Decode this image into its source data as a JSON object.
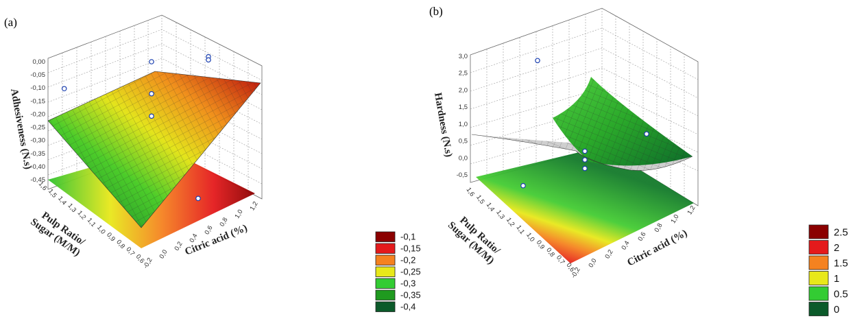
{
  "chart_data": [
    {
      "panel": "(a)",
      "type": "surface3d",
      "zlabel": "Adhesiveness (N.s)",
      "xlabel": "Citric acid (%)",
      "ylabel": "Pulp Ratio/ Sugar (M/M)",
      "z_ticks": [
        "0,00",
        "-0,05",
        "-0,10",
        "-0,15",
        "-0,20",
        "-0,25",
        "-0,30",
        "-0,35",
        "-0,40",
        "-0,45"
      ],
      "x_ticks": [
        "-0,2",
        "0,0",
        "0,2",
        "0,4",
        "0,6",
        "0,8",
        "1,0",
        "1,2"
      ],
      "y_ticks": [
        "0,6",
        "0,7",
        "0,8",
        "0,9",
        "1,0",
        "1,1",
        "1,2",
        "1,3",
        "1,4",
        "1,5",
        "1,6"
      ],
      "zlim": [
        -0.45,
        0.0
      ],
      "xlim": [
        -0.2,
        1.2
      ],
      "ylim": [
        0.6,
        1.6
      ],
      "legend": {
        "entries": [
          "-0,1",
          "-0,15",
          "-0,2",
          "-0,25",
          "-0,3",
          "-0,35",
          "-0,4"
        ],
        "colors": [
          "#8b0000",
          "#e41a1c",
          "#f58220",
          "#e8e81a",
          "#33cc33",
          "#1f9a1f",
          "#0b5a2a"
        ]
      },
      "points": [
        {
          "x": 0.0,
          "y": 1.6,
          "z": -0.19
        },
        {
          "x": 0.5,
          "y": 1.1,
          "z": -0.06
        },
        {
          "x": 0.5,
          "y": 1.1,
          "z": -0.16
        },
        {
          "x": 0.5,
          "y": 1.1,
          "z": -0.23
        },
        {
          "x": 1.2,
          "y": 1.1,
          "z": -0.13
        },
        {
          "x": 1.2,
          "y": 1.1,
          "z": -0.14
        },
        {
          "x": 0.5,
          "y": 0.6,
          "z": -0.38
        }
      ]
    },
    {
      "panel": "(b)",
      "type": "surface3d",
      "zlabel": "Hardness (N.s)",
      "xlabel": "Citric acid (%)",
      "ylabel": "Pulp Ratio/ Sugar (M/M)",
      "z_ticks": [
        "3,0",
        "2,5",
        "2,0",
        "1,5",
        "1,0",
        "0,5",
        "0,0",
        "-0,5"
      ],
      "x_ticks": [
        "-0,2",
        "0,0",
        "0,2",
        "0,4",
        "0,6",
        "0,8",
        "1,0",
        "1,2"
      ],
      "y_ticks": [
        "0,6",
        "0,7",
        "0,8",
        "0,9",
        "1,0",
        "1,1",
        "1,2",
        "1,3",
        "1,4",
        "1,5",
        "1,6"
      ],
      "zlim": [
        -0.5,
        3.0
      ],
      "xlim": [
        -0.2,
        1.2
      ],
      "ylim": [
        0.6,
        1.6
      ],
      "legend": {
        "entries": [
          "2.5",
          "2",
          "1.5",
          "1",
          "0.5",
          "0"
        ],
        "colors": [
          "#8b0000",
          "#e41a1c",
          "#f58220",
          "#e8e81a",
          "#33cc33",
          "#0b5a2a"
        ]
      },
      "points": [
        {
          "x": -0.2,
          "y": 1.1,
          "z": 0.3
        },
        {
          "x": 0.5,
          "y": 1.6,
          "z": 1.5
        },
        {
          "x": 0.5,
          "y": 1.1,
          "z": 0.4
        },
        {
          "x": 0.5,
          "y": 1.1,
          "z": 0.2
        },
        {
          "x": 0.5,
          "y": 1.1,
          "z": 0.0
        },
        {
          "x": 1.2,
          "y": 1.1,
          "z": 0.1
        }
      ]
    }
  ]
}
